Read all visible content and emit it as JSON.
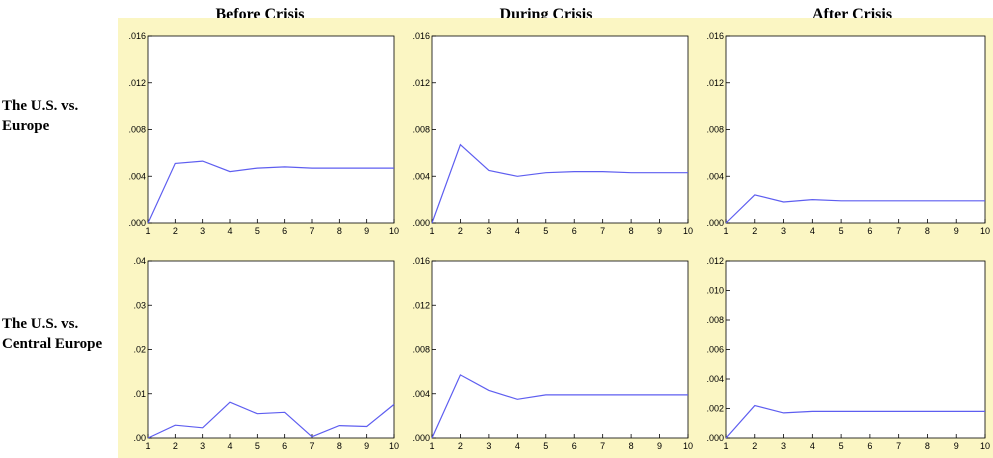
{
  "columns": [
    "Before Crisis",
    "During Crisis",
    "After Crisis"
  ],
  "rows": [
    {
      "label_line1": "The U.S. vs.",
      "label_line2": "Europe"
    },
    {
      "label_line1": "The U.S. vs.",
      "label_line2": "Central Europe"
    }
  ],
  "colors": {
    "line": "#5e5ef0",
    "panel_bg": "#fbf6c3",
    "plot_bg": "#ffffff"
  },
  "chart_data": [
    {
      "type": "line",
      "row": 0,
      "col": 0,
      "title": "Before Crisis",
      "x": [
        1,
        2,
        3,
        4,
        5,
        6,
        7,
        8,
        9,
        10
      ],
      "y": [
        0.0,
        0.0051,
        0.0053,
        0.0044,
        0.0047,
        0.0048,
        0.0047,
        0.0047,
        0.0047,
        0.0047
      ],
      "ylim": [
        0,
        0.016
      ],
      "yticks": [
        ".000",
        ".004",
        ".008",
        ".012",
        ".016"
      ],
      "xticks": [
        "1",
        "2",
        "3",
        "4",
        "5",
        "6",
        "7",
        "8",
        "9",
        "10"
      ]
    },
    {
      "type": "line",
      "row": 0,
      "col": 1,
      "title": "During Crisis",
      "x": [
        1,
        2,
        3,
        4,
        5,
        6,
        7,
        8,
        9,
        10
      ],
      "y": [
        0.0,
        0.0067,
        0.0045,
        0.004,
        0.0043,
        0.0044,
        0.0044,
        0.0043,
        0.0043,
        0.0043
      ],
      "ylim": [
        0,
        0.016
      ],
      "yticks": [
        ".000",
        ".004",
        ".008",
        ".012",
        ".016"
      ],
      "xticks": [
        "1",
        "2",
        "3",
        "4",
        "5",
        "6",
        "7",
        "8",
        "9",
        "10"
      ]
    },
    {
      "type": "line",
      "row": 0,
      "col": 2,
      "title": "After Crisis",
      "x": [
        1,
        2,
        3,
        4,
        5,
        6,
        7,
        8,
        9,
        10
      ],
      "y": [
        0.0,
        0.0024,
        0.0018,
        0.002,
        0.0019,
        0.0019,
        0.0019,
        0.0019,
        0.0019,
        0.0019
      ],
      "ylim": [
        0,
        0.016
      ],
      "yticks": [
        ".000",
        ".004",
        ".008",
        ".012",
        ".016"
      ],
      "xticks": [
        "1",
        "2",
        "3",
        "4",
        "5",
        "6",
        "7",
        "8",
        "9",
        "10"
      ]
    },
    {
      "type": "line",
      "row": 1,
      "col": 0,
      "x": [
        1,
        2,
        3,
        4,
        5,
        6,
        7,
        8,
        9,
        10
      ],
      "y": [
        0.0,
        0.0029,
        0.0023,
        0.0081,
        0.0055,
        0.0058,
        0.0003,
        0.0028,
        0.0026,
        0.0076
      ],
      "ylim": [
        0,
        0.04
      ],
      "yticks": [
        ".00",
        ".01",
        ".02",
        ".03",
        ".04"
      ],
      "xticks": [
        "1",
        "2",
        "3",
        "4",
        "5",
        "6",
        "7",
        "8",
        "9",
        "10"
      ]
    },
    {
      "type": "line",
      "row": 1,
      "col": 1,
      "x": [
        1,
        2,
        3,
        4,
        5,
        6,
        7,
        8,
        9,
        10
      ],
      "y": [
        0.0,
        0.0057,
        0.0043,
        0.0035,
        0.0039,
        0.0039,
        0.0039,
        0.0039,
        0.0039,
        0.0039
      ],
      "ylim": [
        0,
        0.016
      ],
      "yticks": [
        ".000",
        ".004",
        ".008",
        ".012",
        ".016"
      ],
      "xticks": [
        "1",
        "2",
        "3",
        "4",
        "5",
        "6",
        "7",
        "8",
        "9",
        "10"
      ]
    },
    {
      "type": "line",
      "row": 1,
      "col": 2,
      "x": [
        1,
        2,
        3,
        4,
        5,
        6,
        7,
        8,
        9,
        10
      ],
      "y": [
        0.0,
        0.0022,
        0.0017,
        0.0018,
        0.0018,
        0.0018,
        0.0018,
        0.0018,
        0.0018,
        0.0018
      ],
      "ylim": [
        0,
        0.012
      ],
      "yticks": [
        ".000",
        ".002",
        ".004",
        ".006",
        ".008",
        ".010",
        ".012"
      ],
      "xticks": [
        "1",
        "2",
        "3",
        "4",
        "5",
        "6",
        "7",
        "8",
        "9",
        "10"
      ]
    }
  ]
}
